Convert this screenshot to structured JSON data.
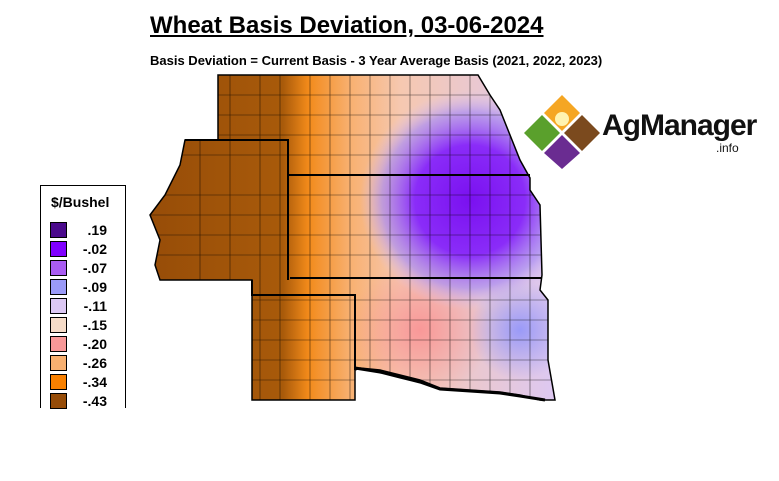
{
  "title": "Wheat Basis Deviation, 03-06-2024",
  "subtitle": "Basis Deviation = Current Basis - 3 Year Average Basis (2021, 2022, 2023)",
  "legend": {
    "title": "$/Bushel",
    "items": [
      {
        "label": ".19",
        "color": "#4b0a8c"
      },
      {
        "label": "-.02",
        "color": "#8000ff"
      },
      {
        "label": "-.07",
        "color": "#a95cf2"
      },
      {
        "label": "-.09",
        "color": "#9a9af8"
      },
      {
        "label": "-.11",
        "color": "#dcc8f4"
      },
      {
        "label": "-.15",
        "color": "#f6dcc8"
      },
      {
        "label": "-.20",
        "color": "#f89898"
      },
      {
        "label": "-.26",
        "color": "#f8b070"
      },
      {
        "label": "-.34",
        "color": "#f88000"
      },
      {
        "label": "-.43",
        "color": "#964c08"
      }
    ]
  },
  "logo": {
    "name": "AgManager",
    "suffix": ".info"
  }
}
